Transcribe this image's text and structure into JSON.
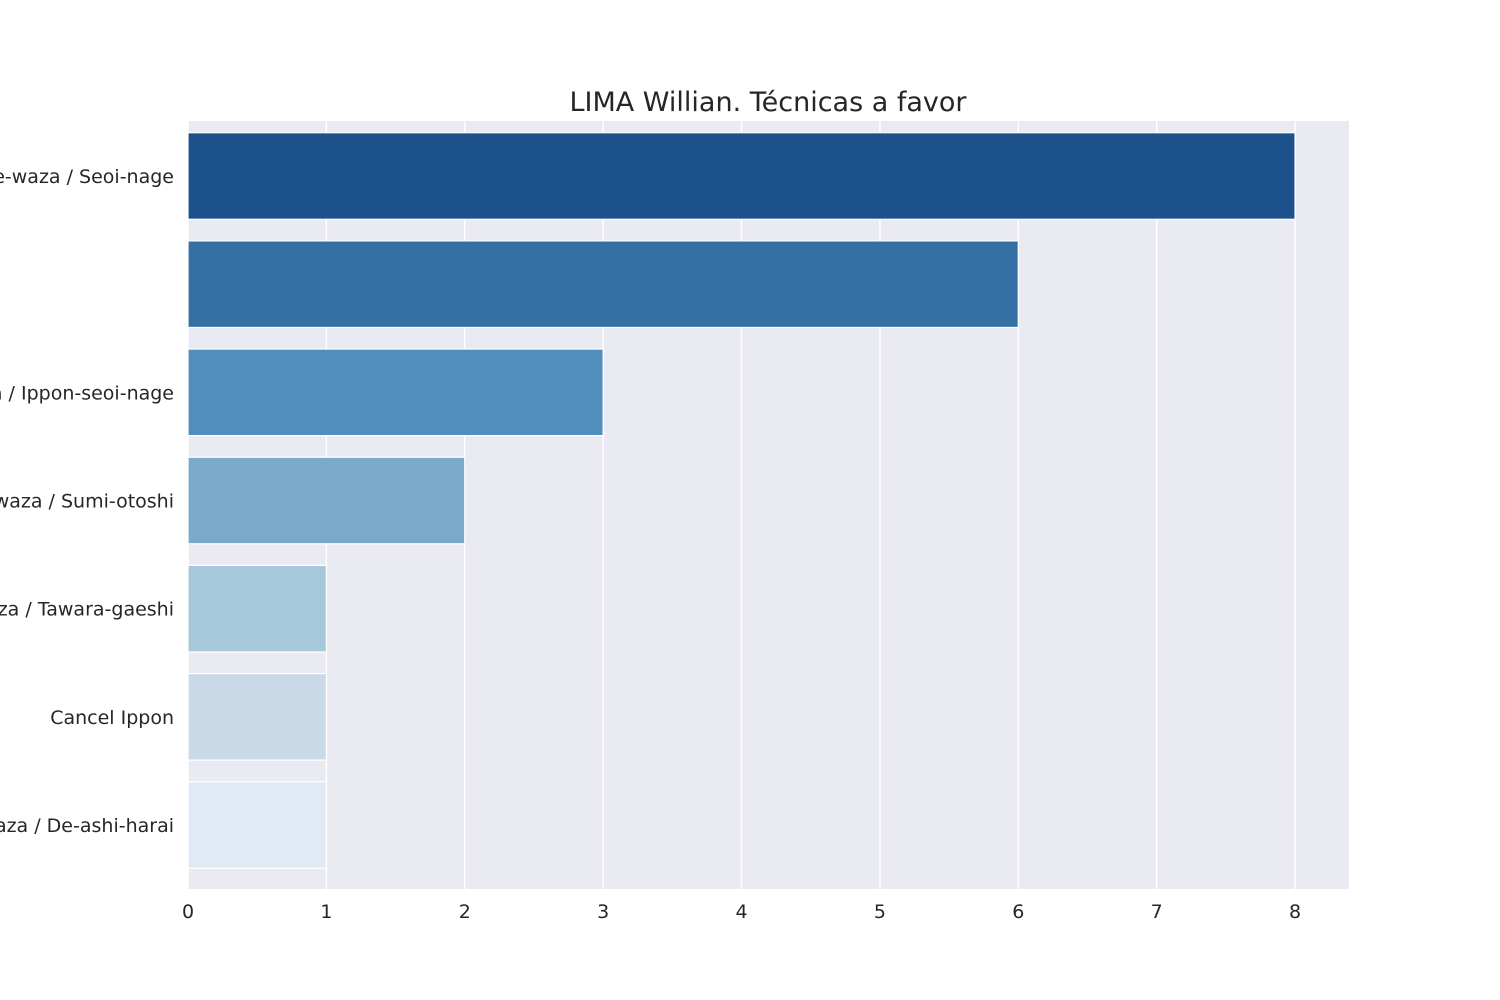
{
  "chart_data": {
    "type": "bar",
    "orientation": "horizontal",
    "title": "LIMA Willian. Técnicas a favor",
    "xlabel": "",
    "ylabel": "",
    "categories": [
      "Te-waza / Seoi-nage",
      "",
      "Te-waza / Ippon-seoi-nage",
      "Te-waza / Sumi-otoshi",
      "Sutemi-waza / Tawara-gaeshi",
      "Cancel Ippon",
      "Ashi-waza / De-ashi-harai"
    ],
    "values": [
      8,
      6,
      3,
      2,
      1,
      1,
      1
    ],
    "colors": [
      "#1d518b",
      "#3470a3",
      "#528ebb",
      "#79aac9",
      "#a7c7da",
      "#cad9e8",
      "#e1e9f4"
    ],
    "xlim": [
      0,
      8.39
    ],
    "xticks": [
      0,
      1,
      2,
      3,
      4,
      5,
      6,
      7,
      8
    ],
    "grid": true,
    "legend": "none",
    "plot_background": "#eaeaf2"
  }
}
